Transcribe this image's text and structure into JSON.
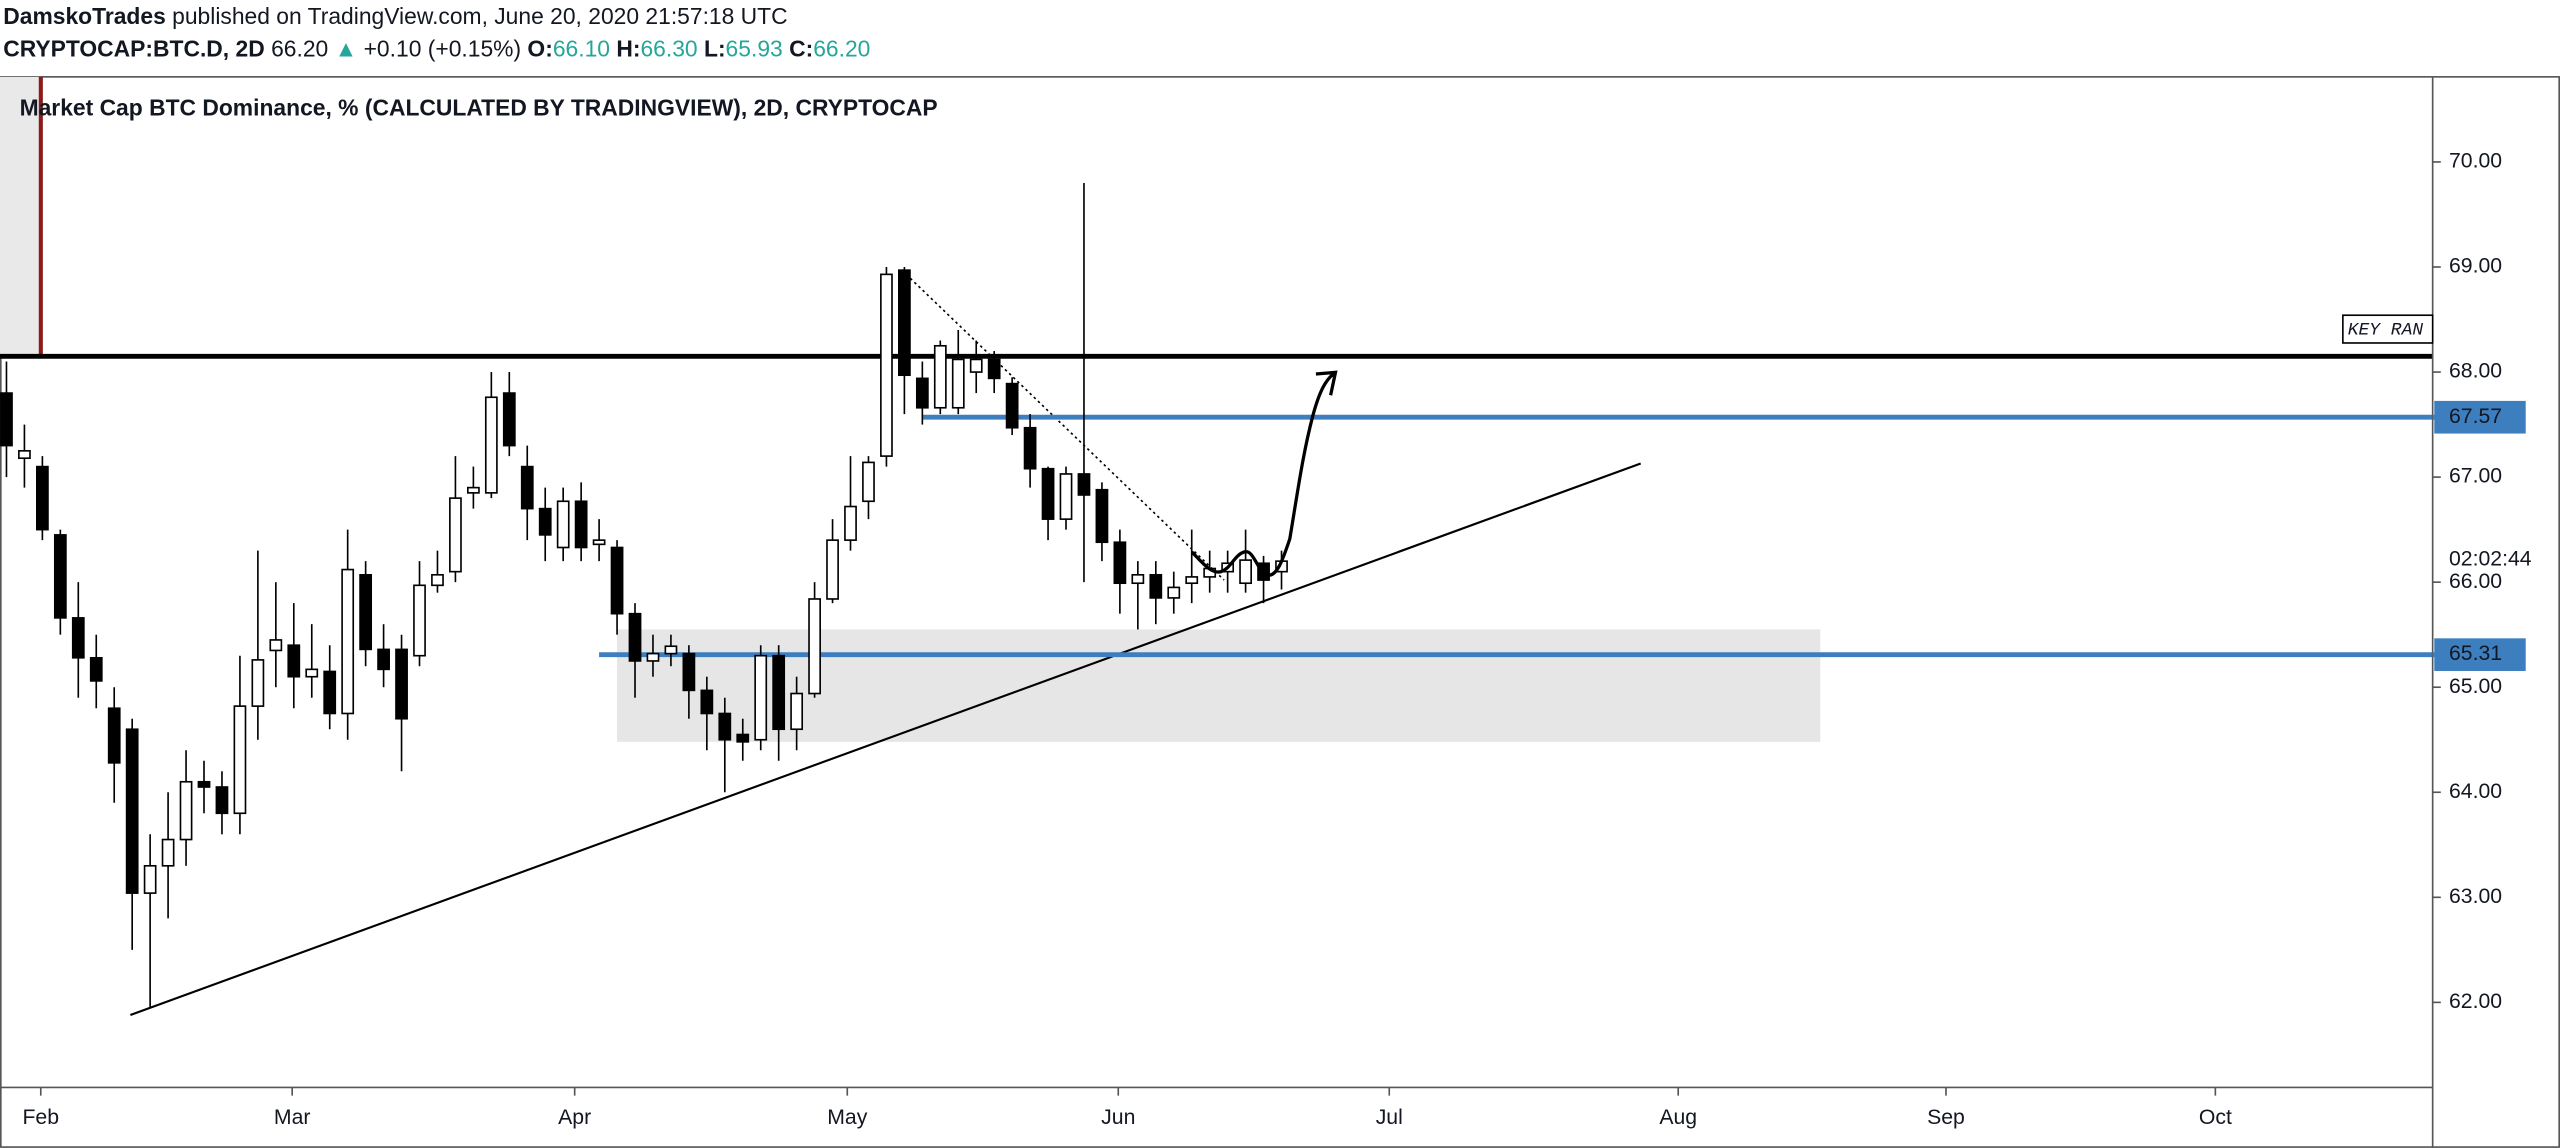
{
  "header": {
    "author": "DamskoTrades",
    "published": " published on TradingView.com, June 20, 2020 21:57:18 UTC",
    "symbol": "CRYPTOCAP:BTC.D, 2D",
    "last": "66.20",
    "arrow": "▲",
    "change": "+0.10 (+0.15%)",
    "o_label": "O:",
    "o": "66.10",
    "h_label": "H:",
    "h": "66.30",
    "l_label": "L:",
    "l": "65.93",
    "c_label": "C:",
    "c": "66.20",
    "countdown": "02:02:44",
    "note": "KEY RAN"
  },
  "chart_data": {
    "type": "candlestick",
    "title": "Market Cap BTC Dominance, % (CALCULATED BY TRADINGVIEW), 2D, CRYPTOCAP",
    "open": [
      67.8,
      67.18,
      67.1,
      66.45,
      65.66,
      65.28,
      64.8,
      64.6,
      63.04,
      63.3,
      63.55,
      64.1,
      64.05,
      63.8,
      64.82,
      65.35,
      65.4,
      65.1,
      65.15,
      64.75,
      66.07,
      65.36,
      65.36,
      65.3,
      65.97,
      66.1,
      66.85,
      66.85,
      67.8,
      67.1,
      66.7,
      66.33,
      66.77,
      66.36,
      66.33,
      65.7,
      65.25,
      65.32,
      65.32,
      64.97,
      64.75,
      64.55,
      64.5,
      65.3,
      64.6,
      64.94,
      65.84,
      66.4,
      66.77,
      67.2,
      68.97,
      67.94,
      67.66,
      67.66,
      68.0,
      68.12,
      67.89,
      67.47,
      67.08,
      66.6,
      67.03,
      66.88,
      66.38,
      65.99,
      66.07,
      65.85,
      65.99,
      66.05,
      66.1,
      65.99,
      66.18,
      66.1
    ],
    "high": [
      68.1,
      67.5,
      67.2,
      66.5,
      66.0,
      65.5,
      65.0,
      64.7,
      63.6,
      64.0,
      64.4,
      64.3,
      64.2,
      65.3,
      66.3,
      66.0,
      65.8,
      65.6,
      65.4,
      66.5,
      66.2,
      65.6,
      65.5,
      66.2,
      66.3,
      67.2,
      67.1,
      68.0,
      68.0,
      67.3,
      66.9,
      66.9,
      66.95,
      66.6,
      66.4,
      65.8,
      65.5,
      65.5,
      65.4,
      65.1,
      64.9,
      64.7,
      65.4,
      65.4,
      65.1,
      66.0,
      66.6,
      67.2,
      67.2,
      69.0,
      69.0,
      68.1,
      68.3,
      68.4,
      68.3,
      68.2,
      67.95,
      67.6,
      67.1,
      67.1,
      69.8,
      66.95,
      66.5,
      66.2,
      66.2,
      66.1,
      66.5,
      66.3,
      66.3,
      66.5,
      66.25,
      66.3
    ],
    "low": [
      67.0,
      66.9,
      66.4,
      65.5,
      64.9,
      64.8,
      63.9,
      62.5,
      61.95,
      62.8,
      63.3,
      63.8,
      63.6,
      63.6,
      64.5,
      65.0,
      64.8,
      64.9,
      64.6,
      64.5,
      65.2,
      65.0,
      64.2,
      65.2,
      65.9,
      66.0,
      66.7,
      66.8,
      67.2,
      66.4,
      66.2,
      66.2,
      66.2,
      66.2,
      65.5,
      64.9,
      65.1,
      65.2,
      64.7,
      64.4,
      64.0,
      64.3,
      64.4,
      64.3,
      64.4,
      64.9,
      65.8,
      66.3,
      66.6,
      67.1,
      67.6,
      67.5,
      67.6,
      67.6,
      67.8,
      67.8,
      67.4,
      66.9,
      66.4,
      66.5,
      66.0,
      66.2,
      65.7,
      65.55,
      65.6,
      65.7,
      65.8,
      65.9,
      65.9,
      65.9,
      65.8,
      65.93
    ],
    "close": [
      67.3,
      67.25,
      66.5,
      65.66,
      65.28,
      65.06,
      64.28,
      63.04,
      63.3,
      63.55,
      64.1,
      64.05,
      63.8,
      64.82,
      65.26,
      65.45,
      65.1,
      65.17,
      64.75,
      66.12,
      65.36,
      65.17,
      64.7,
      65.97,
      66.07,
      66.8,
      66.9,
      67.76,
      67.3,
      66.7,
      66.45,
      66.77,
      66.33,
      66.4,
      65.7,
      65.25,
      65.32,
      65.39,
      64.97,
      64.75,
      64.5,
      64.48,
      65.3,
      64.6,
      64.94,
      65.84,
      66.4,
      66.72,
      67.14,
      68.93,
      67.97,
      67.66,
      68.25,
      68.12,
      68.12,
      67.94,
      67.47,
      67.08,
      66.6,
      67.03,
      66.83,
      66.38,
      65.99,
      66.07,
      65.85,
      65.95,
      66.05,
      66.13,
      66.18,
      66.21,
      66.02,
      66.2
    ],
    "up_color": "#ffffff",
    "down_color": "#000000",
    "wick_color": "#000000",
    "xlim": [
      -0.36,
      135.1
    ],
    "ylim": [
      61.19,
      70.81
    ],
    "xticks": [
      {
        "value": 1.91,
        "label": "Feb"
      },
      {
        "value": 15.91,
        "label": "Mar"
      },
      {
        "value": 31.64,
        "label": "Apr"
      },
      {
        "value": 46.82,
        "label": "May"
      },
      {
        "value": 61.91,
        "label": "Jun"
      },
      {
        "value": 77.0,
        "label": "Jul"
      },
      {
        "value": 93.09,
        "label": "Aug"
      },
      {
        "value": 108.0,
        "label": "Sep"
      },
      {
        "value": 123.0,
        "label": "Oct"
      }
    ],
    "yticks": [
      {
        "value": 62,
        "label": "62.00"
      },
      {
        "value": 63,
        "label": "63.00"
      },
      {
        "value": 64,
        "label": "64.00"
      },
      {
        "value": 65,
        "label": "65.00"
      },
      {
        "value": 66,
        "label": "66.00"
      },
      {
        "value": 67,
        "label": "67.00"
      },
      {
        "value": 68,
        "label": "68.00"
      },
      {
        "value": 69,
        "label": "69.00"
      },
      {
        "value": 70,
        "label": "70.00"
      }
    ],
    "levels": [
      {
        "value": 68.15,
        "color": "#000000"
      },
      {
        "value": 67.57,
        "label": "67.57",
        "start": 51.0,
        "color": "#3d7ebf"
      },
      {
        "value": 65.31,
        "label": "65.31",
        "start": 33.0,
        "color": "#3d7ebf"
      }
    ],
    "zone": {
      "x": [
        34.0,
        101.0
      ],
      "y": [
        64.48,
        65.55
      ],
      "color": "#e6e6e6"
    },
    "trendline": {
      "x": [
        6.9,
        91.0
      ],
      "y": [
        61.88,
        67.13
      ]
    },
    "dotted_line": {
      "x": [
        50.1,
        67.8
      ],
      "y": [
        68.93,
        66.02
      ]
    }
  }
}
